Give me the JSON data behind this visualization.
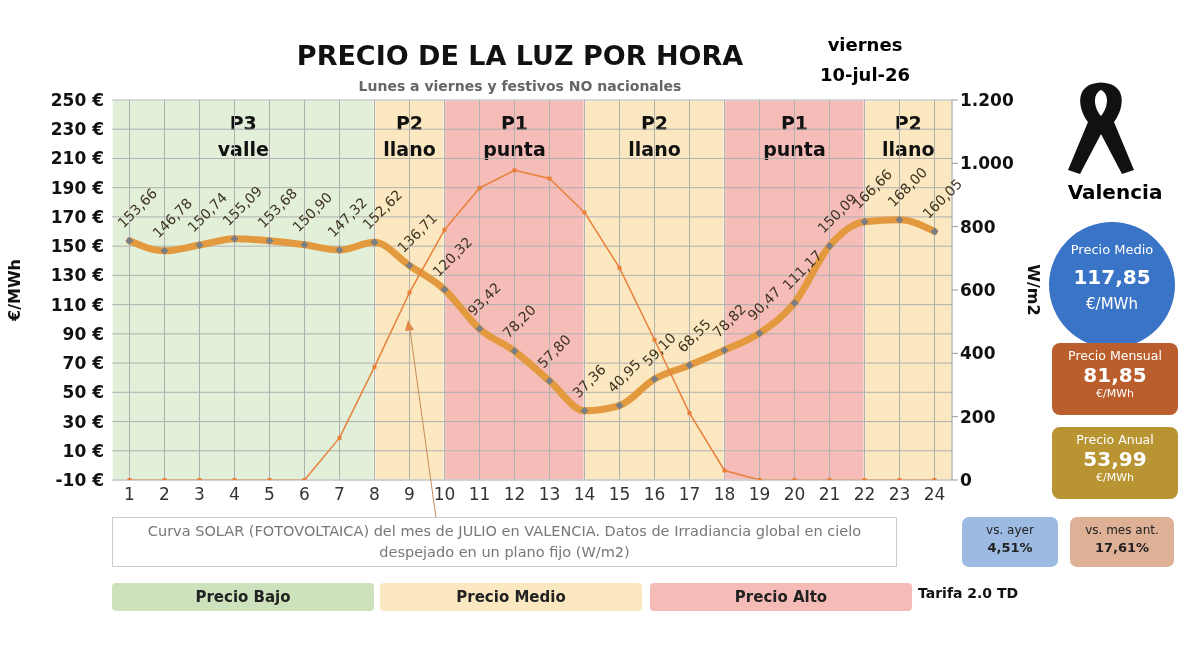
{
  "chart_data": {
    "type": "line",
    "title": "PRECIO DE LA LUZ POR HORA",
    "subtitle": "Lunes a viernes y festivos NO nacionales",
    "ylabel": "€/MWh",
    "y2label": "W/m2",
    "x": [
      1,
      2,
      3,
      4,
      5,
      6,
      7,
      8,
      9,
      10,
      11,
      12,
      13,
      14,
      15,
      16,
      17,
      18,
      19,
      20,
      21,
      22,
      23,
      24
    ],
    "xlim": [
      0.5,
      24.5
    ],
    "xticks": [
      1,
      2,
      3,
      4,
      5,
      6,
      7,
      8,
      9,
      10,
      11,
      12,
      13,
      14,
      15,
      16,
      17,
      18,
      19,
      20,
      21,
      22,
      23,
      24
    ],
    "ylim": [
      -10,
      250
    ],
    "yticks": [
      {
        "value": -10,
        "label": "-10 €"
      },
      {
        "value": 10,
        "label": "10 €"
      },
      {
        "value": 30,
        "label": "30 €"
      },
      {
        "value": 50,
        "label": "50 €"
      },
      {
        "value": 70,
        "label": "70 €"
      },
      {
        "value": 90,
        "label": "90 €"
      },
      {
        "value": 110,
        "label": "110 €"
      },
      {
        "value": 130,
        "label": "130 €"
      },
      {
        "value": 150,
        "label": "150 €"
      },
      {
        "value": 170,
        "label": "170 €"
      },
      {
        "value": 190,
        "label": "190 €"
      },
      {
        "value": 210,
        "label": "210 €"
      },
      {
        "value": 230,
        "label": "230 €"
      },
      {
        "value": 250,
        "label": "250 €"
      }
    ],
    "y2lim": [
      0,
      1200
    ],
    "y2ticks": [
      {
        "value": 0,
        "label": "0"
      },
      {
        "value": 200,
        "label": "200"
      },
      {
        "value": 400,
        "label": "400"
      },
      {
        "value": 600,
        "label": "600"
      },
      {
        "value": 800,
        "label": "800"
      },
      {
        "value": 1000,
        "label": "1.000"
      },
      {
        "value": 1200,
        "label": "1.200"
      }
    ],
    "grid": true,
    "legend": false,
    "series": [
      {
        "color": "#e39a3e",
        "marker": "diamond",
        "values": [
          153.66,
          146.78,
          150.74,
          155.09,
          153.68,
          150.9,
          147.32,
          152.62,
          136.71,
          120.32,
          93.42,
          78.2,
          57.8,
          37.36,
          40.95,
          59.1,
          68.55,
          78.82,
          90.47,
          111.17,
          150.09,
          166.66,
          168.0,
          160.05
        ],
        "value_labels": [
          "153,66",
          "146,78",
          "150,74",
          "155,09",
          "153,68",
          "150,90",
          "147,32",
          "152,62",
          "136,71",
          "120,32",
          "93,42",
          "78,20",
          "57,80",
          "37,36",
          "40,95",
          "59,10",
          "68,55",
          "78,82",
          "90,47",
          "111,17",
          "150,09",
          "166,66",
          "168,00",
          "160,05"
        ]
      },
      {
        "color": "#e8803a",
        "marker": "square",
        "axis": "y2",
        "values": [
          0,
          0,
          0,
          0,
          0,
          0,
          133,
          357,
          592,
          790,
          922,
          978,
          952,
          845,
          670,
          443,
          211,
          30,
          0,
          0,
          0,
          0,
          0,
          0
        ]
      }
    ],
    "bands": [
      {
        "axis": "x",
        "from": 0.5,
        "to": 8,
        "label": "P3 valle",
        "color": "#e2efd9"
      },
      {
        "axis": "x",
        "from": 8,
        "to": 10,
        "label": "P2 llano",
        "color": "#fbe8c0"
      },
      {
        "axis": "x",
        "from": 10,
        "to": 14,
        "label": "P1 punta",
        "color": "#f5bcb8"
      },
      {
        "axis": "x",
        "from": 14,
        "to": 18,
        "label": "P2 llano",
        "color": "#fbe8c0"
      },
      {
        "axis": "x",
        "from": 18,
        "to": 22,
        "label": "P1 punta",
        "color": "#f5bcb8"
      },
      {
        "axis": "x",
        "from": 22,
        "to": 24.5,
        "label": "P2 llano",
        "color": "#fbe8c0"
      }
    ],
    "annotations": [
      "viernes",
      "10-jul-26",
      "Valencia",
      "Precio Medio",
      "117,85",
      "€/MWh",
      "Precio Mensual",
      "81,85",
      "€/MWh",
      "Precio Anual",
      "53,99",
      "€/MWh",
      "vs. ayer",
      "4,51%",
      "vs. mes ant.",
      "17,61%",
      "Curva SOLAR (FOTOVOLTAICA) del mes de JULIO en VALENCIA. Datos de Irradiancia global en cielo despejado en un plano fijo (W/m2)",
      "Precio Bajo",
      "Precio Medio",
      "Precio Alto",
      "Tarifa 2.0 TD"
    ]
  }
}
